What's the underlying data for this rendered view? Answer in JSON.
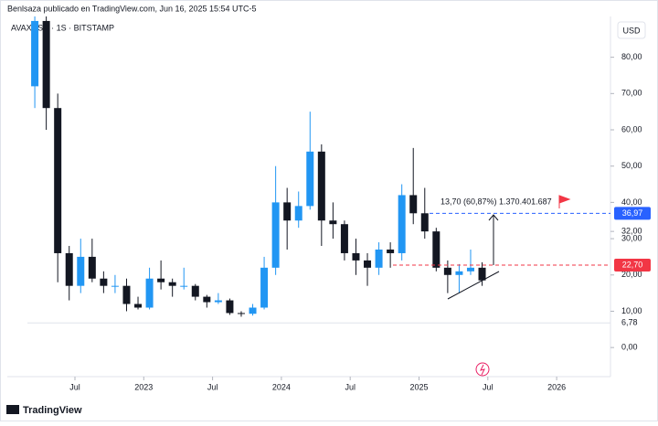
{
  "header": "Benlsaza publicado en TradingView.com, Jun 16, 2025 15:54 UTC-5",
  "footer": "TradingView",
  "chart_data": {
    "type": "candlestick",
    "title": "AVAXUSD · 1S · BITSTAMP",
    "ylabel": "USD",
    "up_color": "#2196f3",
    "down_color": "#131722",
    "grid": false,
    "x": [
      "2022-03",
      "2022-04",
      "2022-05",
      "2022-06",
      "2022-07",
      "2022-08",
      "2022-09",
      "2022-10",
      "2022-11",
      "2022-12",
      "2023-01",
      "2023-02",
      "2023-03",
      "2023-04",
      "2023-05",
      "2023-06",
      "2023-07",
      "2023-08",
      "2023-09",
      "2023-10",
      "2023-11",
      "2023-12",
      "2024-01",
      "2024-02",
      "2024-03",
      "2024-04",
      "2024-05",
      "2024-06",
      "2024-07",
      "2024-08",
      "2024-09",
      "2024-10",
      "2024-11",
      "2024-12",
      "2025-01",
      "2025-02",
      "2025-03",
      "2025-04",
      "2025-05",
      "2025-06"
    ],
    "open": [
      72,
      90,
      66,
      26,
      17,
      25,
      19,
      17,
      17,
      12,
      11,
      19,
      18,
      17,
      17,
      14,
      12.5,
      13,
      9.5,
      9.3,
      11,
      22,
      40,
      35,
      39,
      54,
      35,
      34,
      26,
      24,
      22,
      27,
      26,
      42,
      37,
      32,
      22,
      20,
      21,
      22
    ],
    "high": [
      92,
      92,
      70,
      28,
      30,
      30,
      21,
      20,
      19,
      14,
      22,
      24,
      19,
      22,
      17.5,
      14.5,
      15,
      13.5,
      10,
      12,
      25,
      50,
      44,
      43,
      65,
      56,
      40,
      35,
      30,
      26,
      29,
      29,
      45,
      55,
      44,
      33,
      24,
      23,
      27,
      23.5
    ],
    "low": [
      66,
      60,
      18,
      13,
      15,
      18,
      15,
      15,
      10,
      10.5,
      10.5,
      16,
      14,
      16,
      13,
      11,
      12,
      9,
      8.5,
      8.8,
      10.5,
      20,
      27,
      33,
      38,
      28,
      30,
      24,
      20,
      17,
      20,
      22,
      24,
      34,
      30,
      21,
      15,
      15,
      20,
      17
    ],
    "close": [
      90,
      66,
      26,
      17,
      25,
      19,
      17,
      17,
      12,
      11,
      19,
      18,
      17,
      17,
      14,
      12.5,
      13,
      9.5,
      9.3,
      11,
      22,
      40,
      35,
      39,
      54,
      35,
      34,
      26,
      24,
      22,
      27,
      26,
      42,
      37,
      32,
      22,
      20,
      21,
      22,
      18.5
    ],
    "ylim": [
      -5,
      92
    ],
    "yticks": [
      {
        "value": 0,
        "label": "0,00"
      },
      {
        "value": 10,
        "label": "10,00"
      },
      {
        "value": 20,
        "label": "20,00"
      },
      {
        "value": 30,
        "label": "30,00"
      },
      {
        "value": 32,
        "label": "32,00"
      },
      {
        "value": 40,
        "label": "40,00"
      },
      {
        "value": 50,
        "label": "50,00"
      },
      {
        "value": 60,
        "label": "60,00"
      },
      {
        "value": 70,
        "label": "70,00"
      },
      {
        "value": 80,
        "label": "80,00"
      }
    ],
    "xticks": [
      {
        "value": "2022-07",
        "label": "Jul"
      },
      {
        "value": "2023-01",
        "label": "2023"
      },
      {
        "value": "2023-07",
        "label": "Jul"
      },
      {
        "value": "2024-01",
        "label": "2024"
      },
      {
        "value": "2024-07",
        "label": "Jul"
      },
      {
        "value": "2025-01",
        "label": "2025"
      },
      {
        "value": "2025-07",
        "label": "Jul"
      },
      {
        "value": "2026-01",
        "label": "2026"
      }
    ],
    "price_lines": [
      {
        "value": 36.97,
        "label": "36,97",
        "color": "#2962ff"
      },
      {
        "value": 22.7,
        "label": "22,70",
        "color": "#f23645"
      }
    ],
    "marker_line": {
      "value": 6.78,
      "label": "6,78"
    },
    "annotations": [
      "13,70 (60,87%) 1.370.401.687"
    ]
  }
}
